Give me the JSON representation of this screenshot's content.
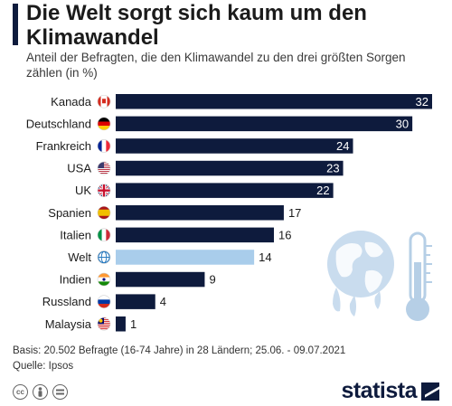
{
  "title": "Die Welt sorgt sich kaum um den Klimawandel",
  "subtitle": "Anteil der Befragten, die den Klimawandel zu den drei größten Sorgen zählen (in %)",
  "footer": {
    "basis": "Basis: 20.502 Befragte (16-74 Jahre) in 28 Ländern; 25.06. - 09.07.2021",
    "source": "Quelle: Ipsos",
    "license_icons": [
      "cc-icon",
      "by-icon",
      "nd-icon"
    ]
  },
  "brand": {
    "name": "statista"
  },
  "colors": {
    "bar": "#0e1b3d",
    "highlight_bar": "#a9cdeb",
    "globe": "#c9dcee",
    "thermometer": "#b6cfe6"
  },
  "chart_data": {
    "type": "bar",
    "orientation": "horizontal",
    "categories": [
      "Kanada",
      "Deutschland",
      "Frankreich",
      "USA",
      "UK",
      "Spanien",
      "Italien",
      "Welt",
      "Indien",
      "Russland",
      "Malaysia"
    ],
    "values": [
      32,
      30,
      24,
      23,
      22,
      17,
      16,
      14,
      9,
      4,
      1
    ],
    "highlight": "Welt",
    "flags": [
      "canada-flag-icon",
      "germany-flag-icon",
      "france-flag-icon",
      "usa-flag-icon",
      "uk-flag-icon",
      "spain-flag-icon",
      "italy-flag-icon",
      "world-globe-icon",
      "india-flag-icon",
      "russia-flag-icon",
      "malaysia-flag-icon"
    ],
    "xlim": [
      0,
      33
    ],
    "grid": false,
    "value_labels": true
  }
}
